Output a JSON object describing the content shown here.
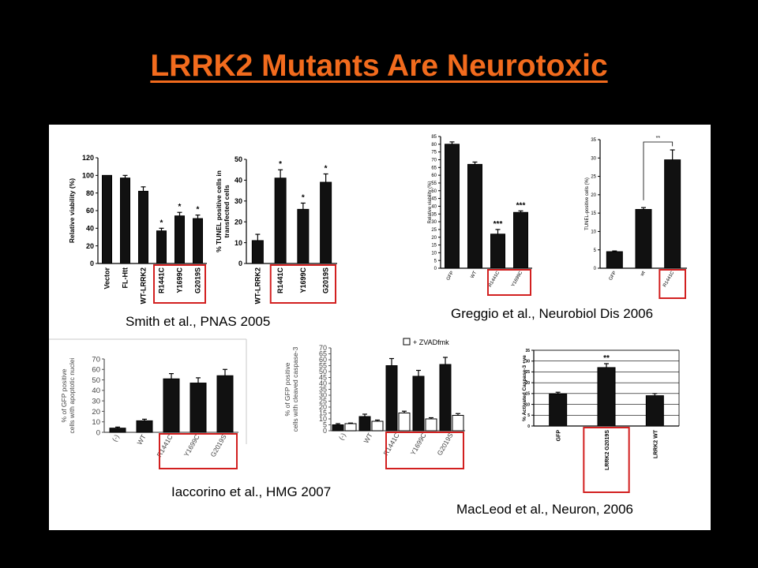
{
  "slide": {
    "title": "LRRK2 Mutants Are Neurotoxic",
    "title_color": "#f26b1d",
    "background": "#000000",
    "highlight_color": "#d22020"
  },
  "citations": {
    "smith": "Smith et al., PNAS 2005",
    "greggio": "Greggio et al., Neurobiol Dis 2006",
    "iaccorino": "Iaccorino et al., HMG 2007",
    "macleod": "MacLeod et al., Neuron, 2006"
  },
  "chart_data": [
    {
      "id": "smith-viability",
      "type": "bar",
      "ylabel": "Relative viability (%)",
      "ylim": [
        0,
        120
      ],
      "yticks": [
        0,
        20,
        40,
        60,
        80,
        100,
        120
      ],
      "categories": [
        "Vector",
        "FL-Htt",
        "WT-LRRK2",
        "R1441C",
        "Y1699C",
        "G2019S"
      ],
      "values": [
        100,
        97,
        82,
        37,
        54,
        51
      ],
      "errors": [
        0,
        3,
        5,
        3,
        4,
        4
      ],
      "significance": [
        "",
        "",
        "",
        "*",
        "*",
        "*"
      ],
      "highlighted": [
        "R1441C",
        "Y1699C",
        "G2019S"
      ]
    },
    {
      "id": "smith-tunel",
      "type": "bar",
      "ylabel": "% TUNEL positive cells in transfected cells",
      "ylim": [
        0,
        50
      ],
      "yticks": [
        0,
        10,
        20,
        30,
        40,
        50
      ],
      "categories": [
        "WT-LRRK2",
        "R1441C",
        "Y1699C",
        "G2019S"
      ],
      "values": [
        11,
        41,
        26,
        39
      ],
      "errors": [
        3,
        4,
        3,
        4
      ],
      "significance": [
        "",
        "*",
        "*",
        "*"
      ],
      "highlighted": [
        "R1441C",
        "Y1699C",
        "G2019S"
      ]
    },
    {
      "id": "greggio-viability",
      "type": "bar",
      "ylabel": "Relative viability (%)",
      "ylim": [
        0,
        85
      ],
      "yticks": [
        0,
        5,
        10,
        15,
        20,
        25,
        30,
        35,
        40,
        45,
        50,
        55,
        60,
        65,
        70,
        75,
        80,
        85
      ],
      "categories": [
        "GFP",
        "WT",
        "R1441C",
        "Y1699C"
      ],
      "values": [
        80,
        67,
        22,
        36
      ],
      "errors": [
        1.5,
        1.5,
        3,
        1
      ],
      "significance": [
        "",
        "",
        "***",
        "***"
      ],
      "highlighted": [
        "R1441C",
        "Y1699C"
      ]
    },
    {
      "id": "greggio-tunel",
      "type": "bar",
      "ylabel": "TUNEL-positive cells (%)",
      "ylim": [
        0,
        35
      ],
      "yticks": [
        0,
        5,
        10,
        15,
        20,
        25,
        30,
        35
      ],
      "categories": [
        "GFP",
        "wt",
        "R1441C"
      ],
      "values": [
        4.5,
        16,
        29.5
      ],
      "errors": [
        0.2,
        0.5,
        2.7
      ],
      "significance": [
        "",
        "",
        ""
      ],
      "bracket": "**",
      "highlighted": [
        "R1441C"
      ]
    },
    {
      "id": "iaccorino-apoptotic",
      "type": "bar",
      "ylabel": "% of GFP positive cells with apoptotic nuclei",
      "ylim": [
        0,
        70
      ],
      "yticks": [
        0,
        10,
        20,
        30,
        40,
        50,
        60,
        70
      ],
      "categories": [
        "(-)",
        "WT",
        "R1441C",
        "Y1699C",
        "G2019S"
      ],
      "values": [
        4,
        11,
        51,
        47,
        54
      ],
      "errors": [
        1,
        1.5,
        5,
        5,
        6
      ],
      "highlighted": [
        "R1441C",
        "Y1699C",
        "G2019S"
      ]
    },
    {
      "id": "iaccorino-caspase",
      "type": "bar",
      "ylabel": "% of GFP positive cells with cleaved caspase-3",
      "ylim": [
        0,
        70
      ],
      "yticks": [
        0,
        5,
        10,
        15,
        20,
        25,
        30,
        35,
        40,
        45,
        50,
        55,
        60,
        65,
        70
      ],
      "categories": [
        "(-)",
        "WT",
        "R1441C",
        "Y1699C",
        "G2019S"
      ],
      "series": [
        {
          "name": "",
          "values": [
            5,
            12,
            55,
            46,
            56
          ],
          "errors": [
            1,
            2,
            6,
            5,
            6
          ]
        },
        {
          "name": "+ ZVADfmk",
          "values": [
            6,
            8,
            15,
            10,
            13
          ],
          "errors": [
            0.5,
            1,
            1.5,
            1,
            1.5
          ]
        }
      ],
      "legend": "top-right",
      "highlighted": [
        "R1441C",
        "Y1699C",
        "G2019S"
      ]
    },
    {
      "id": "macleod-caspase",
      "type": "bar",
      "ylabel": "% Activated Caspase-3 +ve",
      "ylim": [
        0,
        35
      ],
      "yticks": [
        0,
        5,
        10,
        15,
        20,
        25,
        30,
        35
      ],
      "categories": [
        "GFP",
        "LRRK2 G2019S",
        "LRRK2 WT"
      ],
      "values": [
        14.8,
        27,
        14
      ],
      "errors": [
        0.8,
        1.8,
        1
      ],
      "significance": [
        "",
        "**",
        ""
      ],
      "grid": true,
      "highlighted": [
        "LRRK2 G2019S"
      ]
    }
  ]
}
